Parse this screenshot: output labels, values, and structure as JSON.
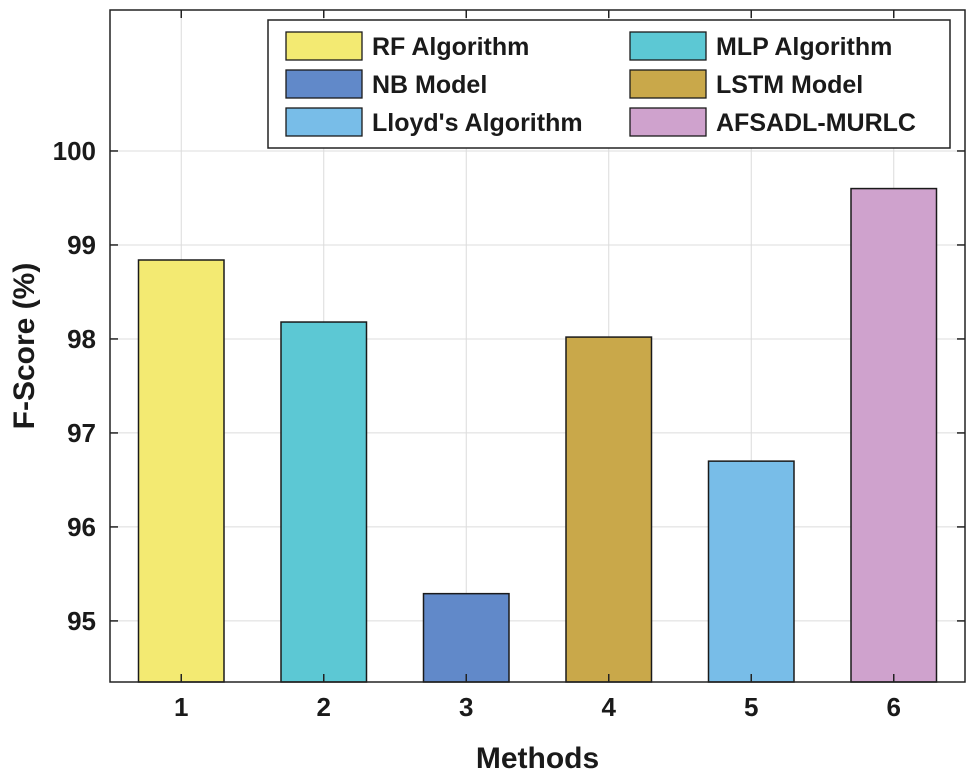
{
  "chart_data": {
    "type": "bar",
    "title": "",
    "xlabel": "Methods",
    "ylabel": "F-Score (%)",
    "ylim": [
      94.35,
      101.5
    ],
    "yticks": [
      95,
      96,
      97,
      98,
      99,
      100
    ],
    "grid": true,
    "legend_position": "top-right",
    "categories": [
      "1",
      "2",
      "3",
      "4",
      "5",
      "6"
    ],
    "series": [
      {
        "name": "RF Algorithm",
        "value": 98.84,
        "color": "#f3ea72"
      },
      {
        "name": "MLP Algorithm",
        "value": 98.18,
        "color": "#5cc8d4"
      },
      {
        "name": "NB Model",
        "value": 95.29,
        "color": "#6189c9"
      },
      {
        "name": "LSTM Model",
        "value": 98.02,
        "color": "#c9a84a"
      },
      {
        "name": "Lloyd's Algorithm",
        "value": 96.7,
        "color": "#78bde8"
      },
      {
        "name": "AFSADL-MURLC",
        "value": 99.6,
        "color": "#cfa2cd"
      }
    ]
  }
}
